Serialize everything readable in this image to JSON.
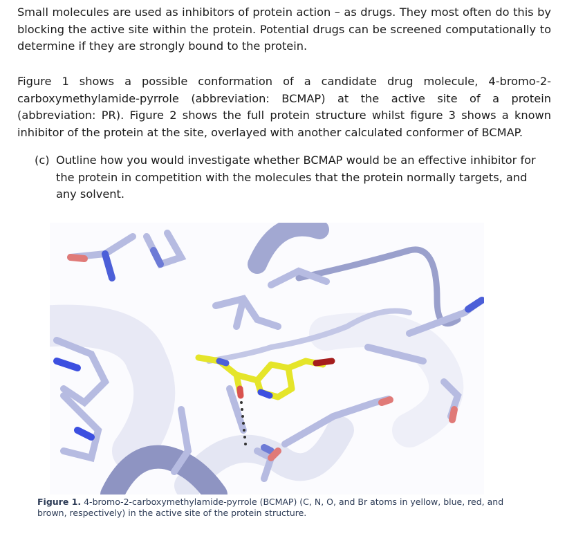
{
  "paragraphs": [
    "Small molecules are used as inhibitors of protein action – as drugs. They most often do this by blocking the active site within the protein. Potential drugs can be screened computationally to determine if they are strongly bound to the protein.",
    "Figure 1 shows a possible conformation of a candidate drug molecule, 4-bromo-2-carboxymethylamide-pyrrole (abbreviation: BCMAP) at the active site of a protein (abbreviation: PR). Figure 2 shows the full protein structure whilst figure 3 shows a known inhibitor of the protein at the site, overlayed with another calculated conformer of BCMAP."
  ],
  "question": {
    "label": "(c)",
    "text": "Outline how you would investigate whether BCMAP would be an effective inhibitor for the protein in competition with the molecules that the protein normally targets, and any solvent."
  },
  "figure": {
    "caption_label": "Figure 1.",
    "caption_text": "4-bromo-2-carboxymethylamide-pyrrole (BCMAP) (C, N, O, and Br atoms in yellow, blue, red, and brown, respectively) in the active site of the protein structure."
  }
}
